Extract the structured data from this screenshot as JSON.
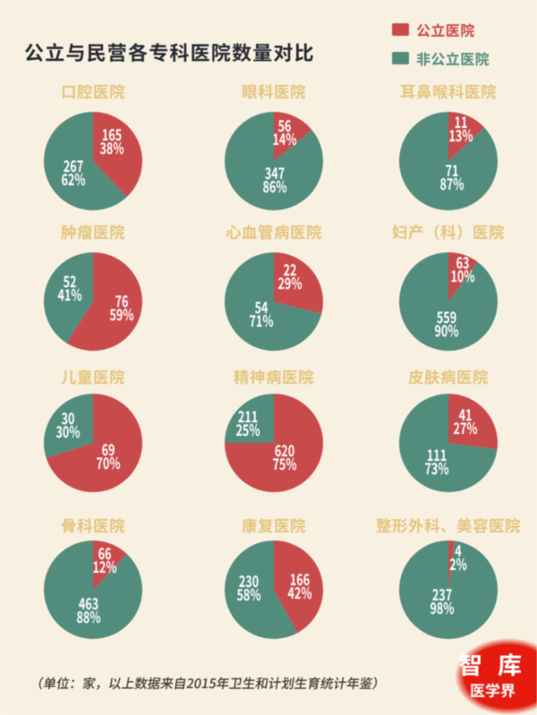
{
  "title": "公立与民营各专科医院数量对比",
  "legend": {
    "public": {
      "label": "公立医院",
      "color": "#c94a4b"
    },
    "nonpublic": {
      "label": "非公立医院",
      "color": "#528c7d"
    }
  },
  "footnote": "（单位：家，以上数据来自2015年卫生和计划生育统计年鉴）",
  "logo": {
    "line1": "智库",
    "line2": "医学界"
  },
  "chart_data": {
    "type": "pie",
    "title": "公立与民营各专科医院数量对比",
    "unit": "家",
    "legend": [
      "公立医院",
      "非公立医院"
    ],
    "colors": {
      "public": "#c94a4b",
      "nonpublic": "#528c7d"
    },
    "legend_position": "top-right",
    "pies": [
      {
        "title": "口腔医院",
        "public": {
          "value": 165,
          "pct": 38
        },
        "nonpublic": {
          "value": 267,
          "pct": 62
        }
      },
      {
        "title": "眼科医院",
        "public": {
          "value": 56,
          "pct": 14
        },
        "nonpublic": {
          "value": 347,
          "pct": 86
        }
      },
      {
        "title": "耳鼻喉科医院",
        "public": {
          "value": 11,
          "pct": 13
        },
        "nonpublic": {
          "value": 71,
          "pct": 87
        }
      },
      {
        "title": "肿瘤医院",
        "public": {
          "value": 76,
          "pct": 59
        },
        "nonpublic": {
          "value": 52,
          "pct": 41
        }
      },
      {
        "title": "心血管病医院",
        "public": {
          "value": 22,
          "pct": 29
        },
        "nonpublic": {
          "value": 54,
          "pct": 71
        }
      },
      {
        "title": "妇产（科）医院",
        "public": {
          "value": 63,
          "pct": 10
        },
        "nonpublic": {
          "value": 559,
          "pct": 90
        }
      },
      {
        "title": "儿童医院",
        "public": {
          "value": 69,
          "pct": 70
        },
        "nonpublic": {
          "value": 30,
          "pct": 30
        }
      },
      {
        "title": "精神病医院",
        "public": {
          "value": 620,
          "pct": 75
        },
        "nonpublic": {
          "value": 211,
          "pct": 25
        }
      },
      {
        "title": "皮肤病医院",
        "public": {
          "value": 41,
          "pct": 27
        },
        "nonpublic": {
          "value": 111,
          "pct": 73
        }
      },
      {
        "title": "骨科医院",
        "public": {
          "value": 66,
          "pct": 12
        },
        "nonpublic": {
          "value": 463,
          "pct": 88
        }
      },
      {
        "title": "康复医院",
        "public": {
          "value": 166,
          "pct": 42
        },
        "nonpublic": {
          "value": 230,
          "pct": 58
        }
      },
      {
        "title": "整形外科、美容医院",
        "public": {
          "value": 4,
          "pct": 2
        },
        "nonpublic": {
          "value": 237,
          "pct": 98
        }
      }
    ]
  }
}
